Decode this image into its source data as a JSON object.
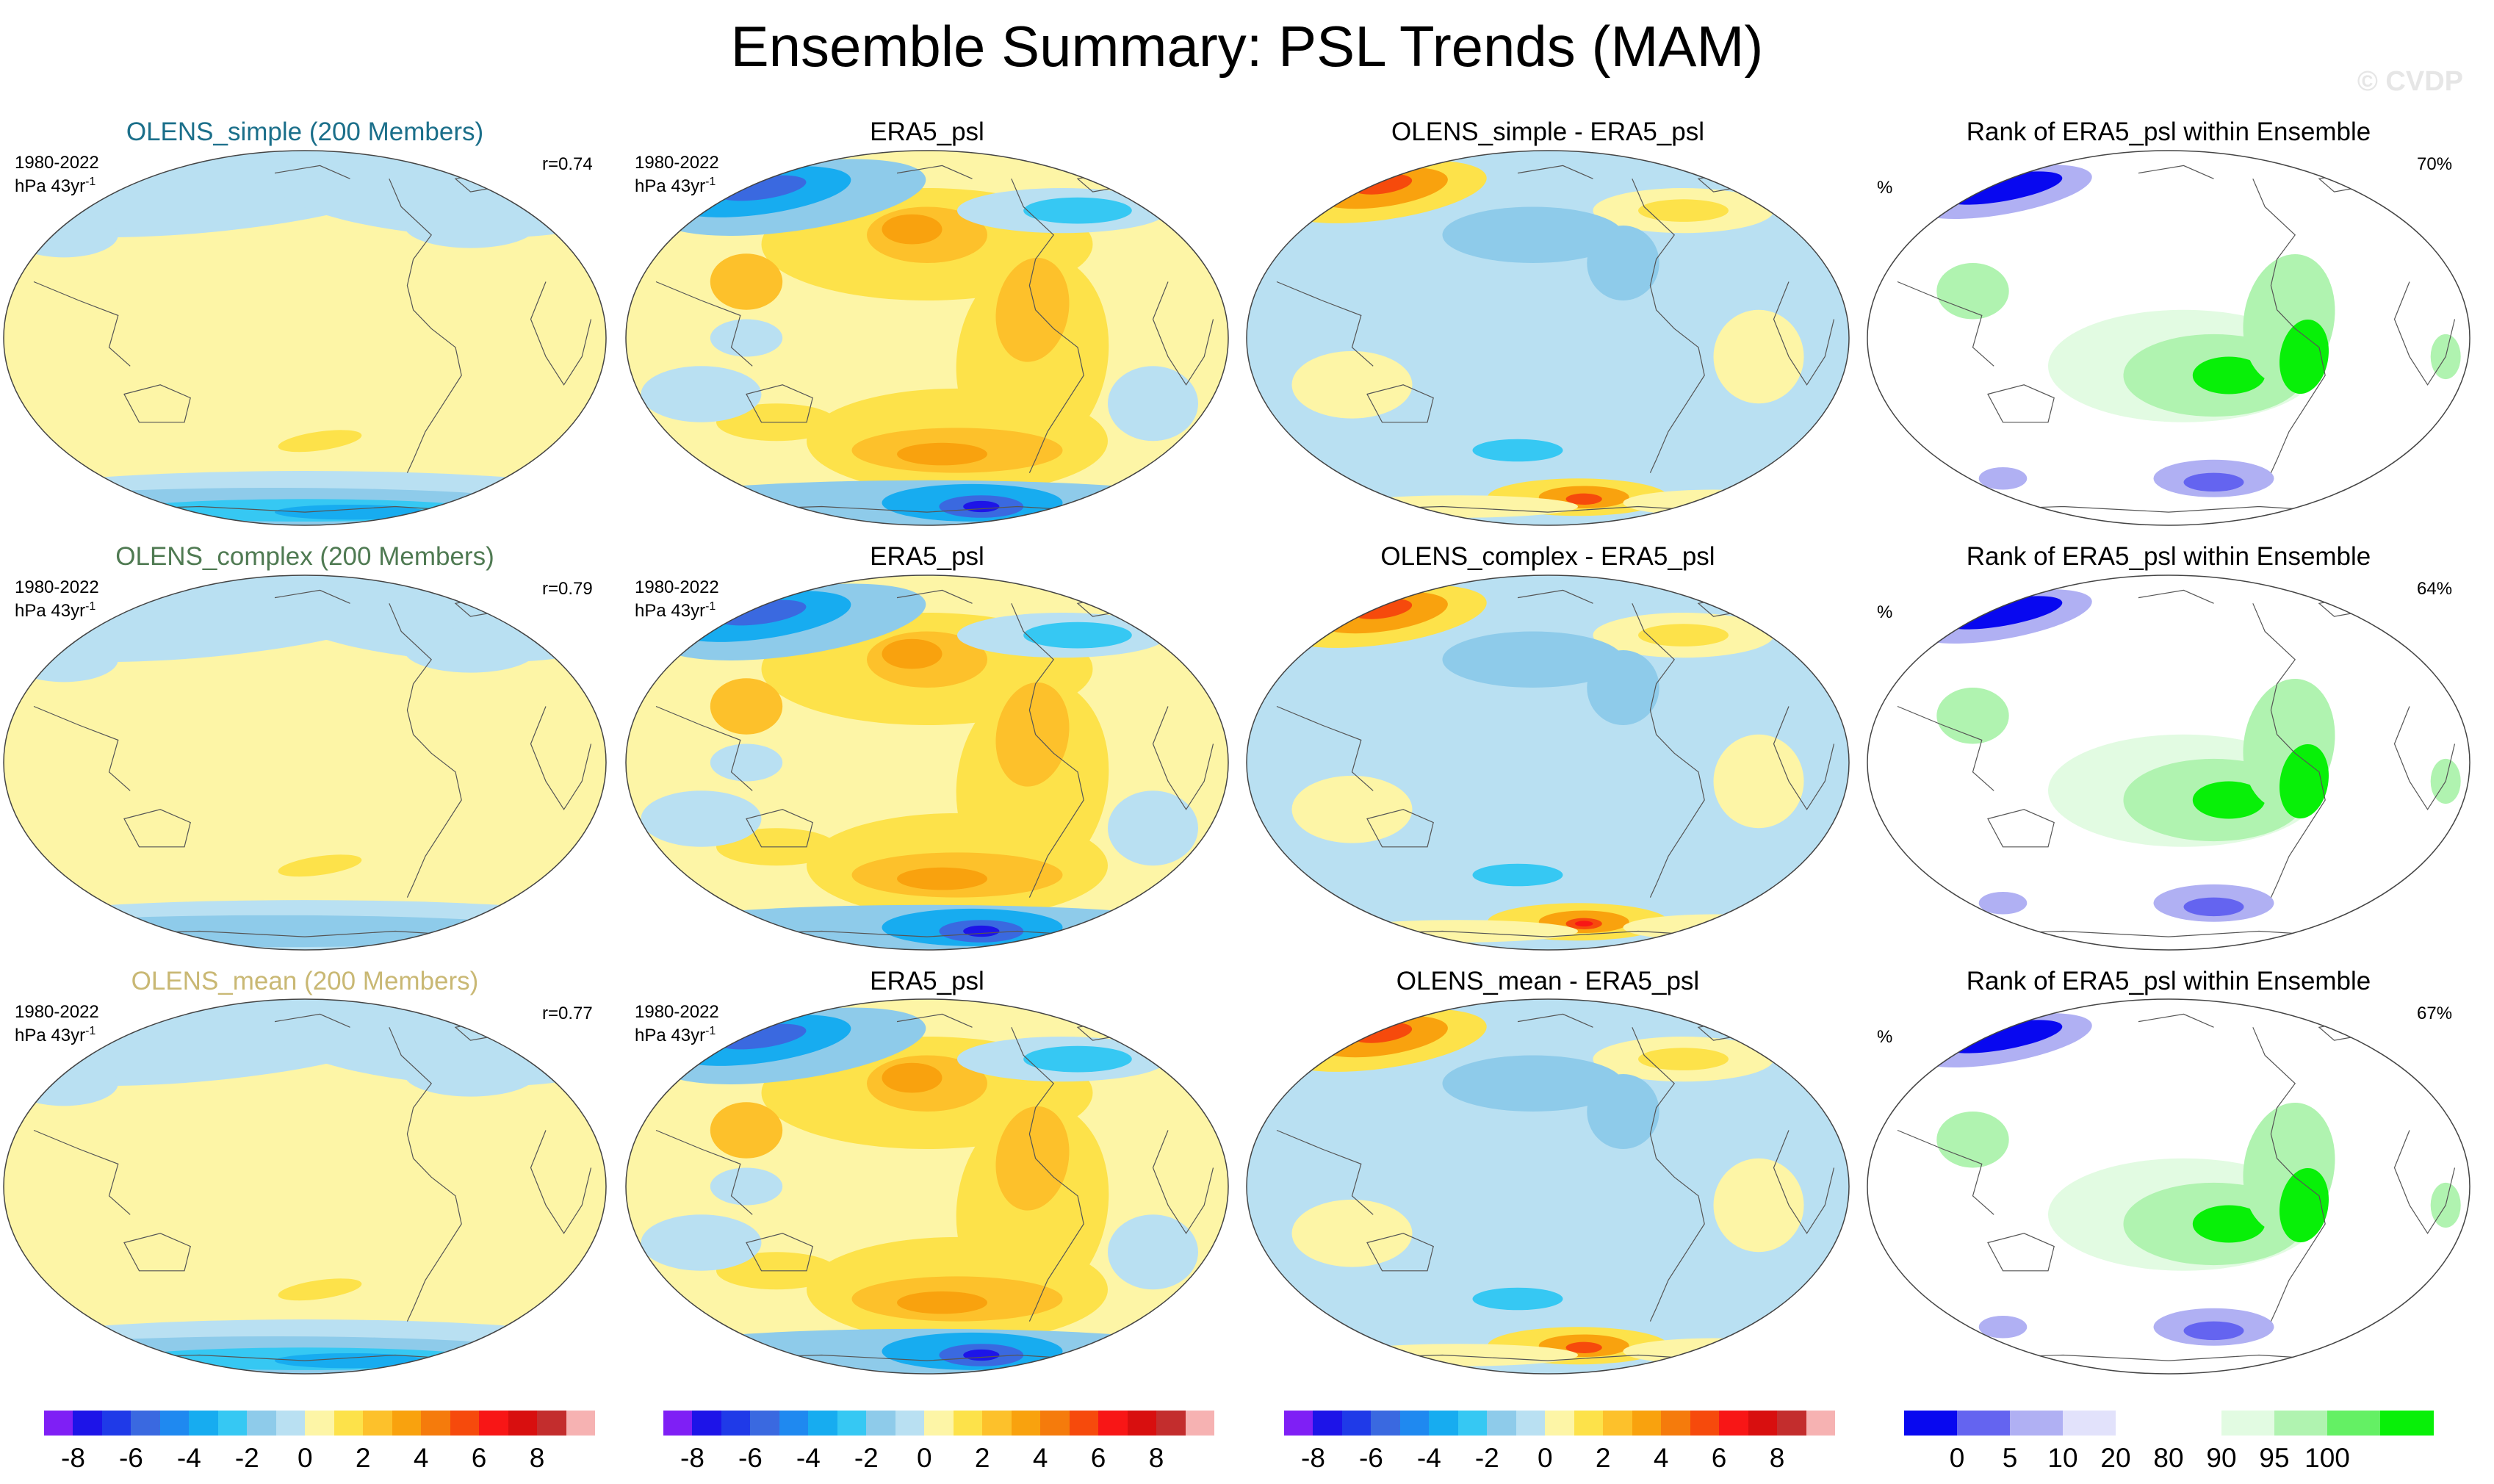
{
  "title": "Ensemble Summary: PSL Trends (MAM)",
  "watermark": "© CVDP",
  "rows": [
    {
      "ens_title": "OLENS_simple (200 Members)",
      "ens_color": "#1b6f8a",
      "period": "1980-2022",
      "units": "hPa 43yr",
      "units_sup": "-1",
      "corr": "r=0.74",
      "obs_title": "ERA5_psl",
      "obs_period": "1980-2022",
      "obs_units": "hPa 43yr",
      "obs_units_sup": "-1",
      "diff_title": "OLENS_simple - ERA5_psl",
      "rank_title": "Rank of ERA5_psl within Ensemble",
      "rank_unit": "%",
      "rank_pct": "70%"
    },
    {
      "ens_title": "OLENS_complex (200 Members)",
      "ens_color": "#4f7a52",
      "period": "1980-2022",
      "units": "hPa 43yr",
      "units_sup": "-1",
      "corr": "r=0.79",
      "obs_title": "ERA5_psl",
      "obs_period": "1980-2022",
      "obs_units": "hPa 43yr",
      "obs_units_sup": "-1",
      "diff_title": "OLENS_complex - ERA5_psl",
      "rank_title": "Rank of ERA5_psl within Ensemble",
      "rank_unit": "%",
      "rank_pct": "64%"
    },
    {
      "ens_title": "OLENS_mean (200 Members)",
      "ens_color": "#c9b874",
      "period": "1980-2022",
      "units": "hPa 43yr",
      "units_sup": "-1",
      "corr": "r=0.77",
      "obs_title": "ERA5_psl",
      "obs_period": "1980-2022",
      "obs_units": "hPa 43yr",
      "obs_units_sup": "-1",
      "diff_title": "OLENS_mean - ERA5_psl",
      "rank_title": "Rank of ERA5_psl within Ensemble",
      "rank_unit": "%",
      "rank_pct": "67%"
    }
  ],
  "trend_colorbar": {
    "colors": [
      "#7f1ff5",
      "#1d14e8",
      "#1f3ae8",
      "#3a69e0",
      "#1f89f0",
      "#17acf0",
      "#36c8f3",
      "#8ecbea",
      "#b9e0f2",
      "#fdf5a6",
      "#fde24a",
      "#fdc12b",
      "#f9a20e",
      "#f57b0c",
      "#f64a0c",
      "#f81616",
      "#d80f0f",
      "#c32d2d",
      "#f6b2b2"
    ],
    "ticks": [
      "-8",
      "-6",
      "-4",
      "-2",
      "0",
      "2",
      "4",
      "6",
      "8"
    ]
  },
  "rank_colorbar": {
    "colors": [
      "#0808f0",
      "#6464f0",
      "#b0b0f3",
      "#e2e2fb",
      "#ffffff",
      "#ffffff",
      "#e2fbe2",
      "#b0f3b0",
      "#64f064",
      "#08f008"
    ],
    "ticks": [
      "0",
      "5",
      "10",
      "20",
      "80",
      "90",
      "95",
      "100"
    ]
  }
}
